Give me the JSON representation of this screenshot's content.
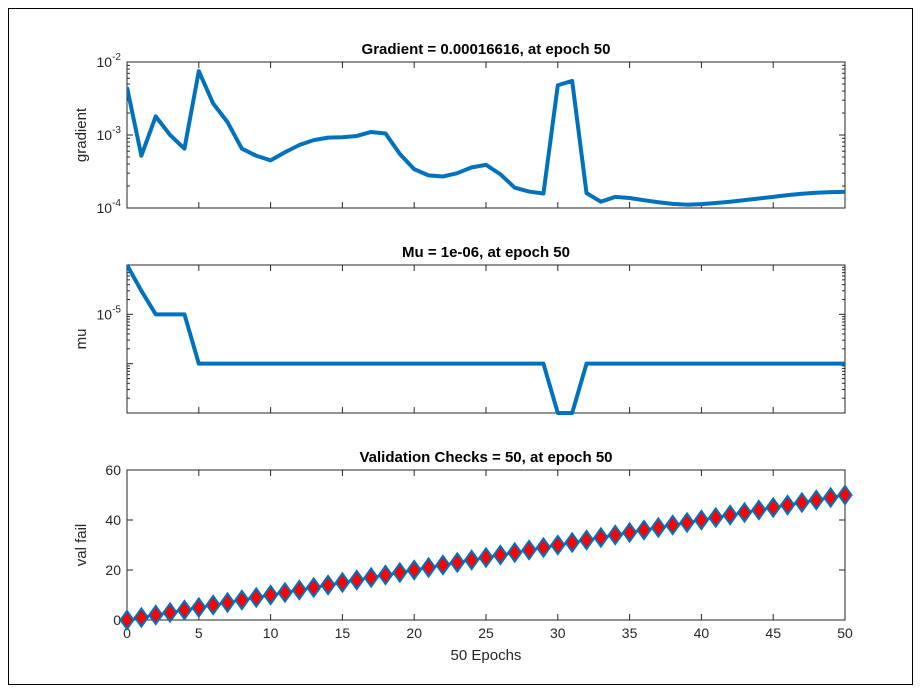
{
  "figure": {
    "background": "#ffffff",
    "line_color": "#0072bd",
    "marker_edge_color": "#0072bd",
    "marker_face_color": "#ff0000"
  },
  "chart_data": [
    {
      "type": "line",
      "title": "Gradient = 0.00016616, at epoch 50",
      "ylabel": "gradient",
      "xlabel": "",
      "yscale": "log",
      "xlim": [
        0,
        50
      ],
      "ylim": [
        0.0001,
        0.01
      ],
      "ytick_labels": [
        {
          "base": "10",
          "exp": "-4",
          "value": 0.0001
        },
        {
          "base": "10",
          "exp": "-3",
          "value": 0.001
        },
        {
          "base": "10",
          "exp": "-2",
          "value": 0.01
        }
      ],
      "series": [
        {
          "x": [
            0,
            1,
            2,
            3,
            4,
            5,
            6,
            7,
            8,
            9,
            10,
            11,
            12,
            13,
            14,
            15,
            16,
            17,
            18,
            19,
            20,
            21,
            22,
            23,
            24,
            25,
            26,
            27,
            28,
            29,
            30,
            31,
            32,
            33,
            34,
            35,
            36,
            37,
            38,
            39,
            40,
            41,
            42,
            43,
            44,
            45,
            46,
            47,
            48,
            49,
            50
          ],
          "values": [
            0.0045,
            0.00052,
            0.0018,
            0.001,
            0.00065,
            0.0075,
            0.0027,
            0.0015,
            0.00065,
            0.00052,
            0.00045,
            0.00058,
            0.00073,
            0.00085,
            0.00092,
            0.00093,
            0.00097,
            0.0011,
            0.00105,
            0.00055,
            0.00034,
            0.00028,
            0.00027,
            0.0003,
            0.00036,
            0.00039,
            0.00029,
            0.00019,
            0.000168,
            0.000158,
            0.0048,
            0.0055,
            0.00016,
            0.000122,
            0.000142,
            0.000137,
            0.000128,
            0.00012,
            0.000114,
            0.000111,
            0.000113,
            0.000117,
            0.000122,
            0.000128,
            0.000135,
            0.000142,
            0.00015,
            0.000157,
            0.000162,
            0.000165,
            0.00016616
          ]
        }
      ]
    },
    {
      "type": "line",
      "title": "Mu = 1e-06, at epoch 50",
      "ylabel": "mu",
      "xlabel": "",
      "yscale": "log",
      "xlim": [
        0,
        50
      ],
      "ylim": [
        1e-07,
        0.0001
      ],
      "ytick_labels": [
        {
          "base": "10",
          "exp": "-5",
          "value": 1e-05
        }
      ],
      "series": [
        {
          "x": [
            0,
            1,
            2,
            3,
            4,
            5,
            6,
            7,
            8,
            9,
            10,
            11,
            12,
            13,
            14,
            15,
            16,
            17,
            18,
            19,
            20,
            21,
            22,
            23,
            24,
            25,
            26,
            27,
            28,
            29,
            30,
            31,
            32,
            33,
            34,
            35,
            36,
            37,
            38,
            39,
            40,
            41,
            42,
            43,
            44,
            45,
            46,
            47,
            48,
            49,
            50
          ],
          "values": [
            0.0001,
            3e-05,
            1e-05,
            1e-05,
            1e-05,
            1e-06,
            1e-06,
            1e-06,
            1e-06,
            1e-06,
            1e-06,
            1e-06,
            1e-06,
            1e-06,
            1e-06,
            1e-06,
            1e-06,
            1e-06,
            1e-06,
            1e-06,
            1e-06,
            1e-06,
            1e-06,
            1e-06,
            1e-06,
            1e-06,
            1e-06,
            1e-06,
            1e-06,
            1e-06,
            1e-07,
            1e-07,
            1e-06,
            1e-06,
            1e-06,
            1e-06,
            1e-06,
            1e-06,
            1e-06,
            1e-06,
            1e-06,
            1e-06,
            1e-06,
            1e-06,
            1e-06,
            1e-06,
            1e-06,
            1e-06,
            1e-06,
            1e-06,
            1e-06
          ]
        }
      ]
    },
    {
      "type": "scatter",
      "title": "Validation Checks = 50, at epoch 50",
      "ylabel": "val fail",
      "xlabel": "50 Epochs",
      "yscale": "linear",
      "xlim": [
        0,
        50
      ],
      "ylim": [
        0,
        60
      ],
      "yticks": [
        0,
        20,
        40,
        60
      ],
      "xticks": [
        0,
        5,
        10,
        15,
        20,
        25,
        30,
        35,
        40,
        45,
        50
      ],
      "marker": "diamond",
      "series": [
        {
          "x": [
            0,
            1,
            2,
            3,
            4,
            5,
            6,
            7,
            8,
            9,
            10,
            11,
            12,
            13,
            14,
            15,
            16,
            17,
            18,
            19,
            20,
            21,
            22,
            23,
            24,
            25,
            26,
            27,
            28,
            29,
            30,
            31,
            32,
            33,
            34,
            35,
            36,
            37,
            38,
            39,
            40,
            41,
            42,
            43,
            44,
            45,
            46,
            47,
            48,
            49,
            50
          ],
          "values": [
            0,
            1,
            2,
            3,
            4,
            5,
            6,
            7,
            8,
            9,
            10,
            11,
            12,
            13,
            14,
            15,
            16,
            17,
            18,
            19,
            20,
            21,
            22,
            23,
            24,
            25,
            26,
            27,
            28,
            29,
            30,
            31,
            32,
            33,
            34,
            35,
            36,
            37,
            38,
            39,
            40,
            41,
            42,
            43,
            44,
            45,
            46,
            47,
            48,
            49,
            50
          ]
        }
      ]
    }
  ]
}
